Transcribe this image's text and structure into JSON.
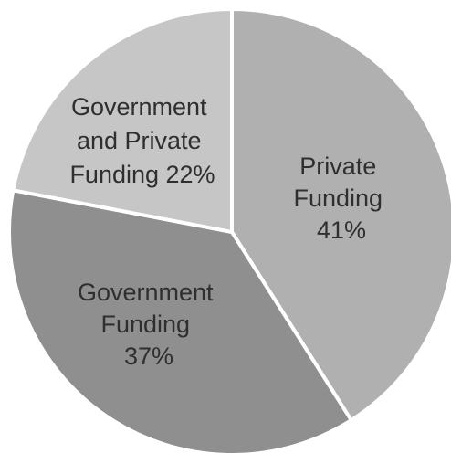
{
  "chart_data": {
    "type": "pie",
    "title": "",
    "start_angle_deg": 0,
    "direction": "clockwise",
    "slices": [
      {
        "label_lines": [
          "Private",
          "Funding",
          "41%"
        ],
        "category": "Private Funding",
        "value": 41,
        "color": "#b0b0b0"
      },
      {
        "label_lines": [
          "Government",
          "Funding",
          "37%"
        ],
        "category": "Government Funding",
        "value": 37,
        "color": "#8f8f8f"
      },
      {
        "label_lines": [
          "Government",
          "and Private",
          "Funding 22%"
        ],
        "category": "Government and Private Funding",
        "value": 22,
        "color": "#c6c6c6"
      }
    ]
  }
}
